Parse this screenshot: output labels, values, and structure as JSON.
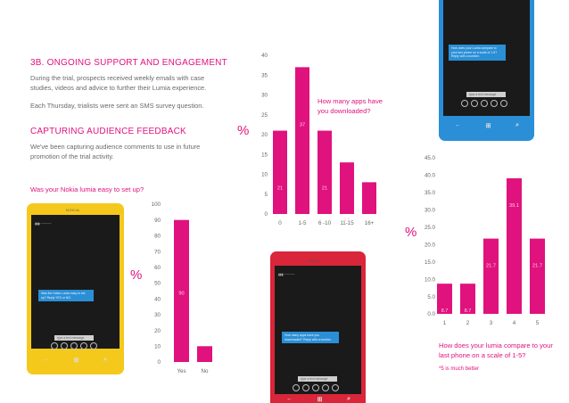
{
  "section": {
    "heading": "3B. ONGOING SUPPORT AND ENGAGEMENT",
    "p1": "During the trial, prospects received weekly emails with case studies, videos and advice to further their Lumia experience.",
    "p2": "Each Thursday, trialists were sent an SMS survey question."
  },
  "feedback": {
    "heading": "CAPTURING AUDIENCE FEEDBACK",
    "p1": "We've been capturing audience comments to use in future promotion of the trial activity."
  },
  "percent_symbol": "%",
  "chart_data": [
    {
      "type": "bar",
      "question": "Was your Nokia lumia easy to set up?",
      "categories": [
        "Yes",
        "No"
      ],
      "values": [
        90,
        10
      ],
      "ylim": [
        0,
        100
      ],
      "yticks": [
        "0",
        "10",
        "20",
        "30",
        "40",
        "50",
        "60",
        "70",
        "80",
        "90",
        "100"
      ],
      "ylabel": "%",
      "color": "#e0127e"
    },
    {
      "type": "bar",
      "question": "How many apps have you downloaded?",
      "categories": [
        "0",
        "1-5",
        "6 -10",
        "11-15",
        "16+"
      ],
      "values": [
        21,
        37,
        21,
        13,
        8
      ],
      "ylim": [
        0,
        40
      ],
      "yticks": [
        "0",
        "5",
        "10",
        "15",
        "20",
        "25",
        "30",
        "35",
        "40"
      ],
      "ylabel": "%",
      "color": "#e0127e"
    },
    {
      "type": "bar",
      "question": "How does your lumia compare to your last phone on a scale of 1-5?",
      "note": "*5 is much better",
      "categories": [
        "1",
        "2",
        "3",
        "4",
        "5"
      ],
      "values": [
        8.7,
        8.7,
        21.7,
        39.1,
        21.7
      ],
      "value_labels": [
        "8.7",
        "8.7",
        "21.7",
        "39.1",
        "21.7"
      ],
      "ylim": [
        0,
        45
      ],
      "yticks": [
        "0.0",
        "5.0",
        "10.0",
        "15.0",
        "20.0",
        "25.0",
        "30.0",
        "35.0",
        "40.0",
        "45.0"
      ],
      "ylabel": "%",
      "color": "#e0127e"
    }
  ],
  "phones": {
    "yellow": {
      "brand": "NOKIA",
      "color": "#f4c91c",
      "sms": "Was the Nokia Lumia easy to set up? Reply YES or NO.",
      "input": "type a text message"
    },
    "blue": {
      "color": "#2a8fd6",
      "sms": "How does your Lumia compare to your last phone on a scale of 1-5? Reply with a number.",
      "input": "type a text message"
    },
    "red": {
      "brand": "NOKIA",
      "color": "#d9263a",
      "sms": "How many apps have you downloaded? Reply with a number.",
      "input": "type a text message"
    }
  }
}
